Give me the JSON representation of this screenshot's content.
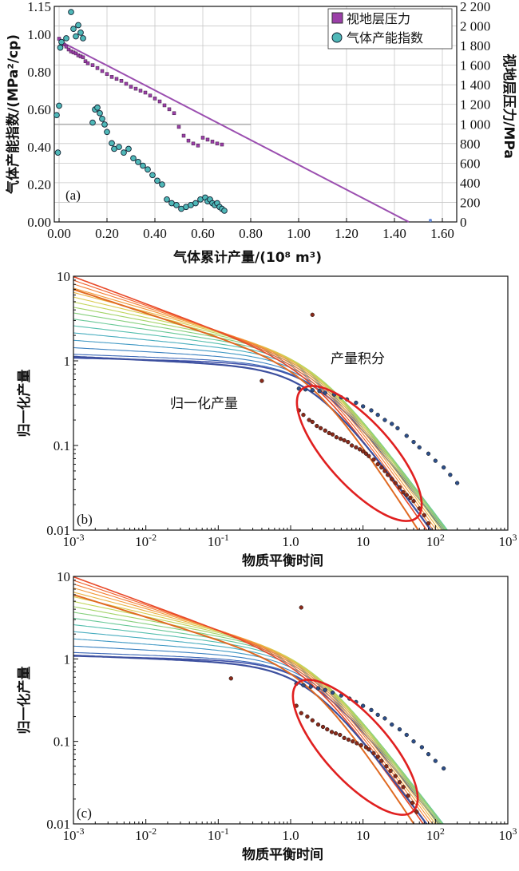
{
  "chart_data": [
    {
      "id": "a",
      "type": "scatter",
      "panel_label": "(a)",
      "xlabel": "气体累计产量/(10⁸ m³)",
      "ylabel": "气体产能指数/(MPa²/cp)",
      "ylabel_right": "视地层压力/MPa",
      "xlim": [
        -0.02,
        1.66
      ],
      "ylim": [
        0,
        1.15
      ],
      "ylim_right": [
        0,
        2200
      ],
      "x_ticks": [
        "0.00",
        "0.20",
        "0.40",
        "0.60",
        "0.80",
        "1.00",
        "1.20",
        "1.40",
        "1.60"
      ],
      "y_ticks": [
        "0.00",
        "0.20",
        "0.40",
        "0.60",
        "0.80",
        "1.00",
        "1.15"
      ],
      "y_right_ticks": [
        "0",
        "200",
        "400",
        "600",
        "800",
        "1 000",
        "1 200",
        "1 400",
        "1 600",
        "1 800",
        "2 000",
        "2 200"
      ],
      "grid": true,
      "legend_position": "top-right",
      "legend": [
        "视地层压力",
        "气体产能指数"
      ],
      "colors": {
        "pressure": "#9b3fa8",
        "index": "#4fb8b8",
        "trend": "#9b4fb0"
      },
      "pressure_trend": {
        "x": [
          0.0,
          1.46
        ],
        "y_right": [
          1850,
          0
        ]
      },
      "series": [
        {
          "name": "视地层压力",
          "axis": "right",
          "marker": "square",
          "x": [
            0.0,
            0.01,
            0.02,
            0.03,
            0.04,
            0.05,
            0.06,
            0.07,
            0.08,
            0.09,
            0.1,
            0.11,
            0.12,
            0.14,
            0.16,
            0.18,
            0.2,
            0.22,
            0.24,
            0.26,
            0.28,
            0.3,
            0.32,
            0.34,
            0.36,
            0.38,
            0.4,
            0.42,
            0.44,
            0.46,
            0.48,
            0.5,
            0.52,
            0.54,
            0.56,
            0.58,
            0.6,
            0.62,
            0.64,
            0.66,
            0.68
          ],
          "y": [
            1870,
            1830,
            1810,
            1790,
            1760,
            1740,
            1730,
            1720,
            1700,
            1690,
            1680,
            1640,
            1620,
            1600,
            1570,
            1540,
            1510,
            1480,
            1460,
            1440,
            1410,
            1380,
            1360,
            1340,
            1320,
            1290,
            1260,
            1230,
            1190,
            1150,
            1110,
            970,
            880,
            830,
            800,
            780,
            860,
            840,
            820,
            800,
            790
          ]
        },
        {
          "name": "气体产能指数",
          "axis": "left",
          "marker": "circle",
          "x": [
            -0.01,
            -0.005,
            0.0,
            0.005,
            0.01,
            0.03,
            0.05,
            0.06,
            0.07,
            0.08,
            0.09,
            0.1,
            0.14,
            0.15,
            0.16,
            0.17,
            0.18,
            0.19,
            0.2,
            0.22,
            0.23,
            0.25,
            0.27,
            0.29,
            0.31,
            0.33,
            0.35,
            0.37,
            0.39,
            0.41,
            0.43,
            0.45,
            0.47,
            0.49,
            0.51,
            0.53,
            0.55,
            0.57,
            0.59,
            0.61,
            0.62,
            0.63,
            0.64,
            0.65,
            0.66,
            0.67,
            0.68,
            0.69
          ],
          "y": [
            0.57,
            0.37,
            0.62,
            0.93,
            0.96,
            0.98,
            1.12,
            1.03,
            0.99,
            1.05,
            1.01,
            0.98,
            0.53,
            0.6,
            0.61,
            0.58,
            0.55,
            0.52,
            0.48,
            0.42,
            0.39,
            0.4,
            0.37,
            0.39,
            0.34,
            0.32,
            0.3,
            0.28,
            0.25,
            0.22,
            0.2,
            0.12,
            0.1,
            0.09,
            0.07,
            0.08,
            0.09,
            0.1,
            0.12,
            0.13,
            0.11,
            0.12,
            0.1,
            0.09,
            0.1,
            0.08,
            0.07,
            0.06
          ]
        }
      ]
    },
    {
      "id": "b",
      "type": "line",
      "panel_label": "(b)",
      "xlabel": "物质平衡时间",
      "ylabel": "归一化产量",
      "x_scale": "log",
      "y_scale": "log",
      "xlim": [
        0.001,
        1000
      ],
      "ylim": [
        0.01,
        10
      ],
      "x_ticks": [
        {
          "base": "10",
          "exp": "-3"
        },
        {
          "base": "10",
          "exp": "-2"
        },
        {
          "base": "10",
          "exp": "-1"
        },
        {
          "base": "1.0",
          "exp": ""
        },
        {
          "base": "10",
          "exp": ""
        },
        {
          "base": "10",
          "exp": "2"
        },
        {
          "base": "10",
          "exp": "3"
        }
      ],
      "y_ticks": [
        "0.01",
        "0.1",
        "1",
        "10"
      ],
      "annotations": [
        "产量积分",
        "归一化产量"
      ],
      "annotation_colors": {
        "ellipse": "#e02020"
      },
      "type_curves": {
        "count": 16,
        "colors": [
          "#3d4fa8",
          "#3a66b6",
          "#3a80c0",
          "#3f98c4",
          "#48adbf",
          "#55bfae",
          "#6ac998",
          "#86d07e",
          "#a4d468",
          "#c1d55a",
          "#dacb4f",
          "#eab445",
          "#f29a3c",
          "#f47e34",
          "#f1612c",
          "#e84828"
        ]
      },
      "data_points": {
        "normalized_rate": {
          "t": [
            0.4,
            1.3,
            1.5,
            1.8,
            2.0,
            2.3,
            2.6,
            3.0,
            3.4,
            3.8,
            4.3,
            4.9,
            5.5,
            6.2,
            7.0,
            8.0,
            9.0,
            10,
            11,
            12,
            14,
            16,
            18,
            20,
            22,
            25,
            28,
            32,
            36,
            40,
            45,
            50,
            60,
            70,
            80
          ],
          "q": [
            0.58,
            0.26,
            0.23,
            0.2,
            0.19,
            0.17,
            0.16,
            0.15,
            0.14,
            0.135,
            0.125,
            0.12,
            0.115,
            0.11,
            0.1,
            0.095,
            0.09,
            0.085,
            0.08,
            0.075,
            0.068,
            0.06,
            0.055,
            0.05,
            0.045,
            0.04,
            0.036,
            0.032,
            0.028,
            0.026,
            0.024,
            0.022,
            0.018,
            0.015,
            0.012
          ],
          "outlier": {
            "t": 2.0,
            "q": 3.5
          }
        },
        "integral": {
          "t": [
            1.3,
            1.6,
            2.0,
            2.5,
            3.0,
            4.0,
            5.0,
            6.0,
            8.0,
            10,
            13,
            16,
            20,
            25,
            30,
            40,
            50,
            60,
            80,
            100,
            130,
            160,
            200
          ],
          "q": [
            0.47,
            0.46,
            0.45,
            0.44,
            0.42,
            0.4,
            0.37,
            0.35,
            0.32,
            0.29,
            0.26,
            0.23,
            0.2,
            0.18,
            0.16,
            0.13,
            0.11,
            0.095,
            0.08,
            0.066,
            0.055,
            0.045,
            0.036
          ]
        }
      }
    },
    {
      "id": "c",
      "type": "line",
      "panel_label": "(c)",
      "xlabel": "物质平衡时间",
      "ylabel": "归一化产量",
      "x_scale": "log",
      "y_scale": "log",
      "xlim": [
        0.001,
        1000
      ],
      "ylim": [
        0.01,
        10
      ],
      "x_ticks": [
        {
          "base": "10",
          "exp": "-3"
        },
        {
          "base": "10",
          "exp": "-2"
        },
        {
          "base": "10",
          "exp": "-1"
        },
        {
          "base": "1.0",
          "exp": ""
        },
        {
          "base": "10",
          "exp": ""
        },
        {
          "base": "10",
          "exp": "2"
        },
        {
          "base": "10",
          "exp": "3"
        }
      ],
      "y_ticks": [
        "0.01",
        "0.1",
        "1",
        "10"
      ],
      "annotation_colors": {
        "ellipse": "#e02020"
      },
      "type_curves": {
        "count": 16,
        "colors": [
          "#3d4fa8",
          "#3a66b6",
          "#3a80c0",
          "#3f98c4",
          "#48adbf",
          "#55bfae",
          "#6ac998",
          "#86d07e",
          "#a4d468",
          "#c1d55a",
          "#dacb4f",
          "#eab445",
          "#f29a3c",
          "#f47e34",
          "#f1612c",
          "#e84828"
        ]
      },
      "data_points": {
        "normalized_rate": {
          "t": [
            0.15,
            1.2,
            1.4,
            1.7,
            2.0,
            2.4,
            2.8,
            3.2,
            3.7,
            4.2,
            4.8,
            5.5,
            6.3,
            7.2,
            8.2,
            9.4,
            11,
            12,
            14,
            16,
            18,
            21,
            24,
            28,
            32,
            36,
            42,
            48,
            55
          ],
          "q": [
            0.58,
            0.27,
            0.22,
            0.2,
            0.18,
            0.16,
            0.15,
            0.14,
            0.13,
            0.125,
            0.12,
            0.11,
            0.105,
            0.1,
            0.095,
            0.09,
            0.085,
            0.08,
            0.072,
            0.065,
            0.058,
            0.05,
            0.044,
            0.038,
            0.032,
            0.028,
            0.022,
            0.018,
            0.014
          ],
          "outlier": {
            "t": 1.4,
            "q": 4.2
          }
        },
        "integral": {
          "t": [
            1.2,
            1.5,
            1.9,
            2.4,
            3.0,
            3.8,
            5.0,
            6.5,
            8.0,
            10,
            13,
            16,
            20,
            25,
            32,
            40,
            50,
            65,
            80,
            100,
            130
          ],
          "q": [
            0.5,
            0.48,
            0.46,
            0.44,
            0.42,
            0.39,
            0.36,
            0.33,
            0.3,
            0.27,
            0.24,
            0.21,
            0.19,
            0.16,
            0.14,
            0.12,
            0.1,
            0.085,
            0.07,
            0.058,
            0.047
          ]
        }
      }
    }
  ]
}
